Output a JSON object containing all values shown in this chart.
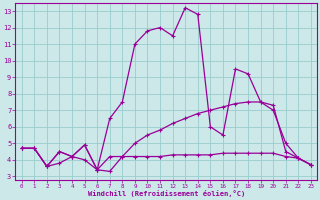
{
  "xlabel": "Windchill (Refroidissement éolien,°C)",
  "bg_color": "#cce8e8",
  "line_color": "#990099",
  "grid_color": "#99cccc",
  "xlim": [
    -0.5,
    23.5
  ],
  "ylim": [
    2.8,
    13.5
  ],
  "xticks": [
    0,
    1,
    2,
    3,
    4,
    5,
    6,
    7,
    8,
    9,
    10,
    11,
    12,
    13,
    14,
    15,
    16,
    17,
    18,
    19,
    20,
    21,
    22,
    23
  ],
  "yticks": [
    3,
    4,
    5,
    6,
    7,
    8,
    9,
    10,
    11,
    12,
    13
  ],
  "line1_x": [
    0,
    1,
    2,
    3,
    4,
    5,
    6,
    7,
    8,
    9,
    10,
    11,
    12,
    13,
    14,
    15,
    16,
    17,
    18,
    19,
    20,
    21,
    22,
    23
  ],
  "line1_y": [
    4.7,
    4.7,
    3.6,
    4.5,
    4.2,
    4.9,
    3.4,
    6.5,
    7.5,
    11.0,
    11.8,
    12.0,
    11.5,
    13.2,
    12.8,
    6.0,
    5.5,
    9.5,
    9.2,
    7.5,
    7.0,
    5.0,
    4.1,
    3.7
  ],
  "line2_x": [
    0,
    1,
    2,
    3,
    4,
    5,
    6,
    7,
    8,
    9,
    10,
    11,
    12,
    13,
    14,
    15,
    16,
    17,
    18,
    19,
    20,
    21,
    22,
    23
  ],
  "line2_y": [
    4.7,
    4.7,
    3.6,
    4.5,
    4.2,
    4.9,
    3.4,
    4.2,
    4.2,
    5.0,
    5.5,
    5.8,
    6.2,
    6.5,
    6.8,
    7.0,
    7.2,
    7.4,
    7.5,
    7.5,
    7.3,
    4.5,
    4.1,
    3.7
  ],
  "line3_x": [
    0,
    1,
    2,
    3,
    4,
    5,
    6,
    7,
    8,
    9,
    10,
    11,
    12,
    13,
    14,
    15,
    16,
    17,
    18,
    19,
    20,
    21,
    22,
    23
  ],
  "line3_y": [
    4.7,
    4.7,
    3.6,
    3.8,
    4.2,
    4.0,
    3.4,
    3.3,
    4.2,
    4.2,
    4.2,
    4.2,
    4.3,
    4.3,
    4.3,
    4.3,
    4.4,
    4.4,
    4.4,
    4.4,
    4.4,
    4.2,
    4.1,
    3.7
  ]
}
